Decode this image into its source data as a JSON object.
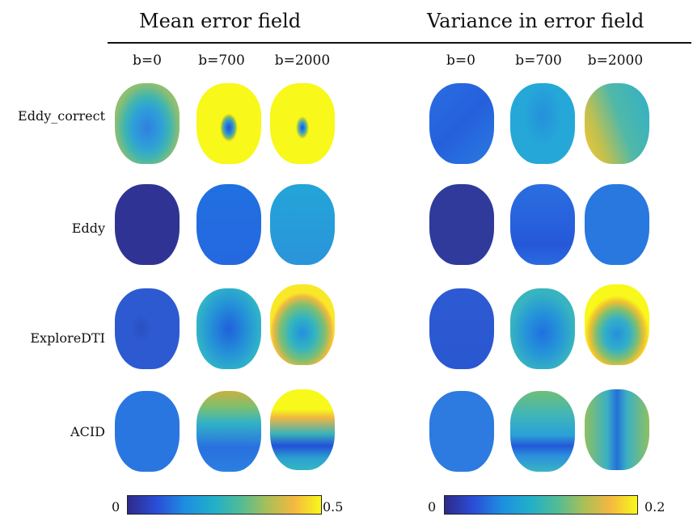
{
  "panels": [
    {
      "title": "Mean error field"
    },
    {
      "title": "Variance in error field"
    }
  ],
  "b_values": [
    "b=0",
    "b=700",
    "b=2000"
  ],
  "methods": [
    "Eddy_correct",
    "Eddy",
    "ExploreDTI",
    "ACID"
  ],
  "colorbars": [
    {
      "min": "0",
      "max": "0.5"
    },
    {
      "min": "0",
      "max": "0.2"
    }
  ],
  "maps": {
    "mean": [
      [
        "yellow-top-teal-blue-center",
        "yellow-with-blue-center",
        "yellow-with-blue-center"
      ],
      [
        "dark-navy",
        "blue",
        "teal-blue"
      ],
      [
        "blue",
        "blue-teal",
        "yellow-rim-teal-center"
      ],
      [
        "blue",
        "yellow-top-band",
        "yellow-top-blue-band"
      ]
    ],
    "variance": [
      [
        "blue",
        "blue-teal",
        "yellow-left-green"
      ],
      [
        "dark-navy",
        "blue-band",
        "blue"
      ],
      [
        "blue",
        "teal-blue",
        "yellow-top-teal"
      ],
      [
        "blue",
        "green-top-blue-band",
        "green-blue-cross"
      ]
    ]
  }
}
